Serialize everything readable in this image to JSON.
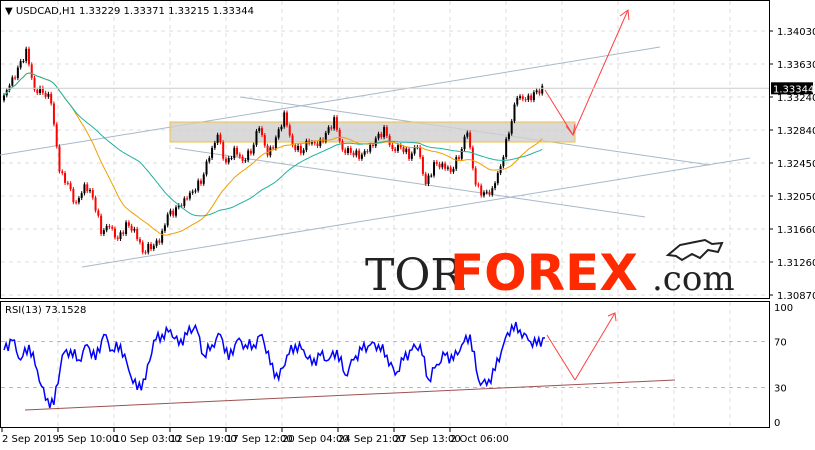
{
  "header": {
    "symbol": "USDCAD,H1",
    "ohlc": "1.33229 1.33371 1.33215 1.33344"
  },
  "rsi_label": "RSI(13) 73.1528",
  "logo": {
    "part1": "TOR",
    "part2": "FOREX",
    "part3": ".com"
  },
  "colors": {
    "up": "#000000",
    "down": "#ff0000",
    "ma_fast": "#f0a000",
    "ma_slow": "#20b0a0",
    "rsi": "#0000ff",
    "trend": "#a8b8c8",
    "zone_border": "#f0c040",
    "arrow": "#ff4040",
    "rsi_support": "#a05050",
    "current_price_bg": "#000000"
  },
  "chart_data": [
    {
      "type": "candlestick",
      "title": "USDCAD,H1",
      "current_price": "1.33344",
      "y_ticks": [
        "1.34030",
        "1.33630",
        "1.33240",
        "1.32840",
        "1.32450",
        "1.32050",
        "1.31660",
        "1.31260",
        "1.30870"
      ],
      "ylim": [
        1.3087,
        1.3403
      ],
      "x_ticks": [
        "2 Sep 2019",
        "5 Sep 10:00",
        "10 Sep 03:00",
        "12 Sep 19:00",
        "17 Sep 12:00",
        "20 Sep 04:00",
        "24 Sep 21:00",
        "27 Sep 13:00",
        "2 Oct 06:00"
      ],
      "closes": [
        1.332,
        1.3338,
        1.3356,
        1.3378,
        1.3332,
        1.3332,
        1.332,
        1.3236,
        1.3218,
        1.3194,
        1.3218,
        1.3206,
        1.3164,
        1.317,
        1.3152,
        1.317,
        1.3164,
        1.314,
        1.3146,
        1.3152,
        1.3182,
        1.3188,
        1.32,
        1.3212,
        1.3224,
        1.3254,
        1.3278,
        1.3242,
        1.326,
        1.3248,
        1.326,
        1.329,
        1.3254,
        1.3272,
        1.3302,
        1.3266,
        1.326,
        1.3272,
        1.3266,
        1.3278,
        1.3296,
        1.326,
        1.326,
        1.3254,
        1.326,
        1.3272,
        1.3284,
        1.326,
        1.3266,
        1.3254,
        1.3266,
        1.3218,
        1.3242,
        1.3242,
        1.3236,
        1.3254,
        1.3284,
        1.3218,
        1.3206,
        1.3212,
        1.3242,
        1.3284,
        1.3326,
        1.332,
        1.3326,
        1.3334
      ],
      "indicators": [
        "moving average (orange)",
        "moving average (teal)"
      ]
    },
    {
      "type": "line",
      "title": "RSI(13) 73.1528",
      "ylim": [
        0,
        100
      ],
      "y_ticks": [
        "100",
        "70",
        "30",
        "0"
      ],
      "values": [
        62.6,
        71,
        54,
        67,
        45,
        19,
        15,
        58,
        62.6,
        54,
        67,
        54,
        76,
        62.6,
        67,
        45,
        28,
        37,
        71,
        76,
        80,
        67,
        76,
        84,
        58,
        67,
        76,
        54,
        71,
        67,
        67,
        76,
        50,
        37,
        58,
        67,
        62.6,
        50,
        58,
        54,
        62.6,
        41,
        54,
        62.6,
        67,
        67,
        58,
        41,
        54,
        62.6,
        67,
        37,
        50,
        58,
        54,
        67,
        76,
        37,
        32,
        45,
        67,
        84,
        80,
        71,
        67,
        73.15
      ]
    }
  ]
}
